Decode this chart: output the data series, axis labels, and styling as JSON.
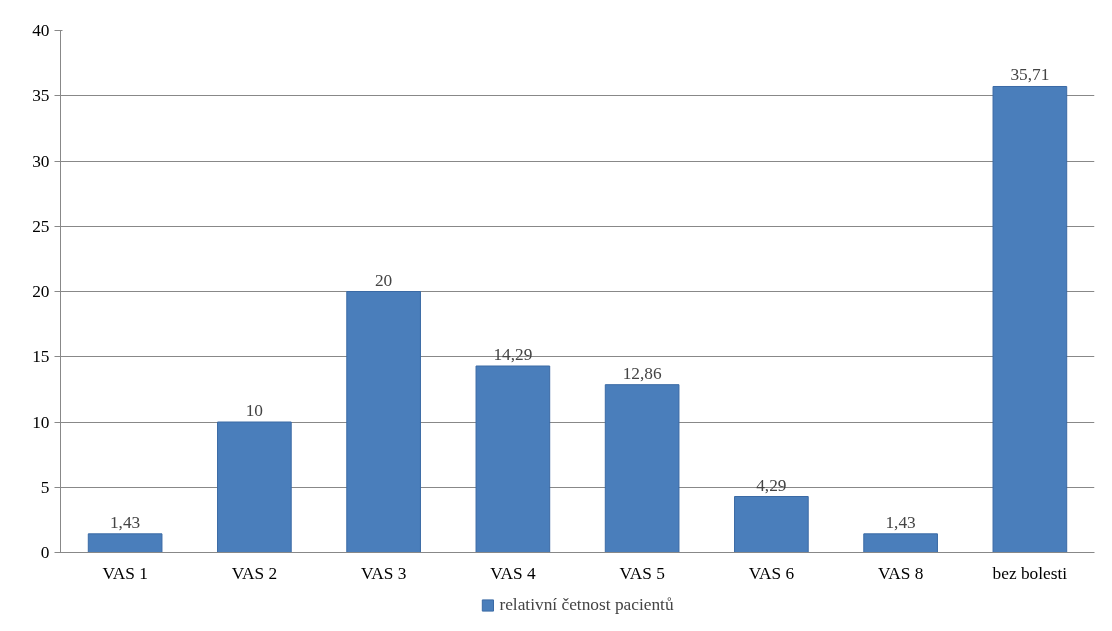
{
  "chart_data": {
    "type": "bar",
    "categories": [
      "VAS 1",
      "VAS 2",
      "VAS 3",
      "VAS 4",
      "VAS 5",
      "VAS 6",
      "VAS 8",
      "bez bolesti"
    ],
    "series": [
      {
        "name": "relativní četnost pacientů",
        "color": "#4a7ebb",
        "values": [
          1.43,
          10,
          20,
          14.29,
          12.86,
          4.29,
          1.43,
          35.71
        ],
        "value_labels": [
          "1,43",
          "10",
          "20",
          "14,29",
          "12,86",
          "4,29",
          "1,43",
          "35,71"
        ]
      }
    ],
    "ylim": [
      0,
      40
    ],
    "yticks": [
      0,
      5,
      10,
      15,
      20,
      25,
      30,
      35,
      40
    ],
    "grid": "y",
    "legend": "bottom"
  }
}
